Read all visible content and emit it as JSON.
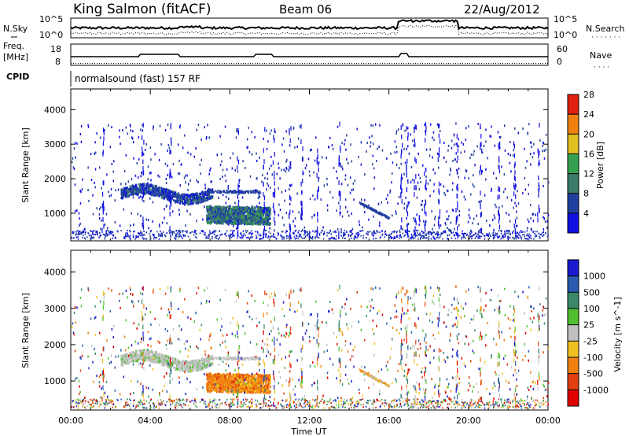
{
  "header": {
    "station": "King Salmon (fitACF)",
    "beam": "Beam 06",
    "date": "22/Aug/2012"
  },
  "noise_panel": {
    "left_label": "N.Sky",
    "right_label": "N.Search",
    "left_ticks": [
      "10^5",
      "10^0"
    ],
    "right_ticks": [
      "10^5",
      "10^0"
    ]
  },
  "freq_panel": {
    "left_label_1": "Freq.",
    "left_label_2": "[MHz]",
    "right_label": "Nave",
    "left_ticks": [
      "18",
      "8"
    ],
    "right_ticks": [
      "60",
      "0"
    ]
  },
  "cpid": {
    "label": "CPID",
    "program": "normalsound (fast) 157 RF"
  },
  "chart_data": [
    {
      "type": "heatmap",
      "name": "power",
      "ylabel": "Slant Range [km]",
      "y_ticks": [
        1000,
        2000,
        3000,
        4000
      ],
      "ylim": [
        200,
        4600
      ],
      "x_ticks": [
        "00:00",
        "04:00",
        "08:00",
        "12:00",
        "16:00",
        "20:00",
        "00:00"
      ],
      "xlim_hours": [
        0,
        24
      ],
      "colorbar": {
        "label": "Power [dB]",
        "ticks": [
          "4",
          "8",
          "12",
          "16",
          "20",
          "24",
          "28"
        ],
        "colors": [
          "#1010e0",
          "#2040a0",
          "#3a7a6a",
          "#35a050",
          "#e0c020",
          "#f08010",
          "#e02010"
        ]
      }
    },
    {
      "type": "heatmap",
      "name": "velocity",
      "ylabel": "Slant Range [km]",
      "y_ticks": [
        1000,
        2000,
        3000,
        4000
      ],
      "ylim": [
        200,
        4600
      ],
      "x_ticks": [
        "00:00",
        "04:00",
        "08:00",
        "12:00",
        "16:00",
        "20:00",
        "00:00"
      ],
      "xlim_hours": [
        0,
        24
      ],
      "xlabel": "Time UT",
      "colorbar": {
        "label": "Velocity [m s^-1]",
        "ticks": [
          "1000",
          "500",
          "100",
          "25",
          "-25",
          "-100",
          "-500",
          "-1000"
        ],
        "colors": [
          "#1a1ad0",
          "#2a5ab0",
          "#3a8a6a",
          "#50c030",
          "#c0c0c0",
          "#f0c020",
          "#f08010",
          "#e04010",
          "#e00000"
        ]
      }
    }
  ]
}
